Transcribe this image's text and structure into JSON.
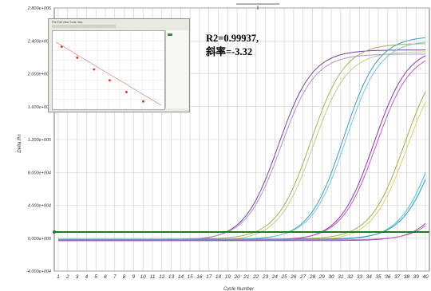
{
  "chart_data": {
    "type": "line",
    "title": "",
    "xlabel": "Cycle Number",
    "ylabel": "Delta Rn",
    "xlim": [
      1,
      40
    ],
    "ylim": [
      -40000,
      280000
    ],
    "x_ticks": [
      "1",
      "2",
      "3",
      "4",
      "5",
      "6",
      "7",
      "8",
      "9",
      "10",
      "11",
      "12",
      "13",
      "14",
      "15",
      "16",
      "17",
      "18",
      "19",
      "20",
      "21",
      "22",
      "23",
      "24",
      "25",
      "26",
      "27",
      "28",
      "29",
      "30",
      "31",
      "32",
      "33",
      "34",
      "35",
      "36",
      "37",
      "38",
      "39",
      "40"
    ],
    "y_ticks": [
      "-4.000e+004",
      "0.000e+000",
      "4.000e+004",
      "8.000e+004",
      "1.200e+005",
      "1.600e+005",
      "2.000e+005",
      "2.400e+005",
      "2.800e+005"
    ],
    "y_tick_values": [
      -40000,
      0,
      40000,
      80000,
      120000,
      160000,
      200000,
      240000,
      280000
    ],
    "grid": true,
    "threshold": 7500,
    "threshold_color": "#1e7a1e",
    "series": [
      {
        "color": "#7b3fa0",
        "ct": 18.2,
        "plateau": 232000
      },
      {
        "color": "#b08fcf",
        "ct": 18.5,
        "plateau": 226000
      },
      {
        "color": "#a6b060",
        "ct": 21.6,
        "plateau": 238000
      },
      {
        "color": "#c7c98a",
        "ct": 21.9,
        "plateau": 230000
      },
      {
        "color": "#3a9fc8",
        "ct": 25.0,
        "plateau": 248000
      },
      {
        "color": "#7fc4e0",
        "ct": 25.3,
        "plateau": 242000
      },
      {
        "color": "#8a3aa8",
        "ct": 28.3,
        "plateau": 236000
      },
      {
        "color": "#c35ac0",
        "ct": 28.6,
        "plateau": 230000
      },
      {
        "color": "#9ab050",
        "ct": 31.6,
        "plateau": 232000
      },
      {
        "color": "#d8d070",
        "ct": 31.9,
        "plateau": 225000
      },
      {
        "color": "#4db8d8",
        "ct": 34.9,
        "plateau": 226000
      },
      {
        "color": "#2e9ac0",
        "ct": 35.2,
        "plateau": 220000
      },
      {
        "color": "#8a4ab0",
        "ct": 38.0,
        "plateau": 200000
      },
      {
        "color": "#c070c8",
        "ct": 38.4,
        "plateau": 190000
      }
    ]
  },
  "annotation": {
    "line1": "R2=0.99937,",
    "line2": "斜率=-3.32"
  },
  "inset": {
    "menu": "File  Edit  View  Tools  Help",
    "points": [
      [
        0.08,
        0.2
      ],
      [
        0.22,
        0.34
      ],
      [
        0.37,
        0.49
      ],
      [
        0.51,
        0.63
      ],
      [
        0.66,
        0.78
      ],
      [
        0.81,
        0.9
      ]
    ],
    "point_color": "#d03030"
  }
}
